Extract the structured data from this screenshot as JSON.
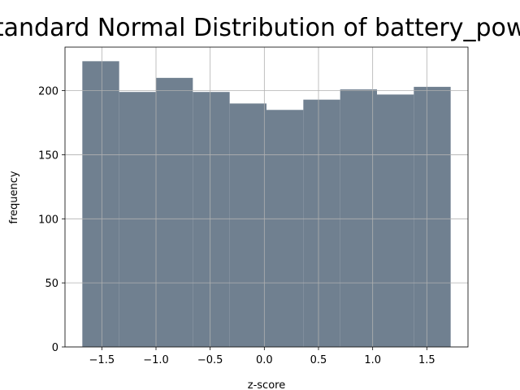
{
  "chart_data": {
    "type": "bar",
    "title": "Standard Normal Distribution of battery_power",
    "xlabel": "z-score",
    "ylabel": "frequency",
    "xlim": [
      -1.84,
      1.88
    ],
    "ylim": [
      0,
      234
    ],
    "grid": true,
    "bar_color": "#708090",
    "grid_color": "#b0b0b0",
    "bins": [
      {
        "x0": -1.68,
        "x1": -1.34,
        "value": 223
      },
      {
        "x0": -1.34,
        "x1": -1.0,
        "value": 199
      },
      {
        "x0": -1.0,
        "x1": -0.66,
        "value": 210
      },
      {
        "x0": -0.66,
        "x1": -0.32,
        "value": 199
      },
      {
        "x0": -0.32,
        "x1": 0.02,
        "value": 190
      },
      {
        "x0": 0.02,
        "x1": 0.36,
        "value": 185
      },
      {
        "x0": 0.36,
        "x1": 0.7,
        "value": 193
      },
      {
        "x0": 0.7,
        "x1": 1.04,
        "value": 201
      },
      {
        "x0": 1.04,
        "x1": 1.38,
        "value": 197
      },
      {
        "x0": 1.38,
        "x1": 1.72,
        "value": 203
      }
    ],
    "x_ticks": [
      {
        "value": -1.5,
        "label": "−1.5"
      },
      {
        "value": -1.0,
        "label": "−1.0"
      },
      {
        "value": -0.5,
        "label": "−0.5"
      },
      {
        "value": 0.0,
        "label": "0.0"
      },
      {
        "value": 0.5,
        "label": "0.5"
      },
      {
        "value": 1.0,
        "label": "1.0"
      },
      {
        "value": 1.5,
        "label": "1.5"
      }
    ],
    "y_ticks": [
      {
        "value": 0,
        "label": "0"
      },
      {
        "value": 50,
        "label": "50"
      },
      {
        "value": 100,
        "label": "100"
      },
      {
        "value": 150,
        "label": "150"
      },
      {
        "value": 200,
        "label": "200"
      }
    ]
  }
}
